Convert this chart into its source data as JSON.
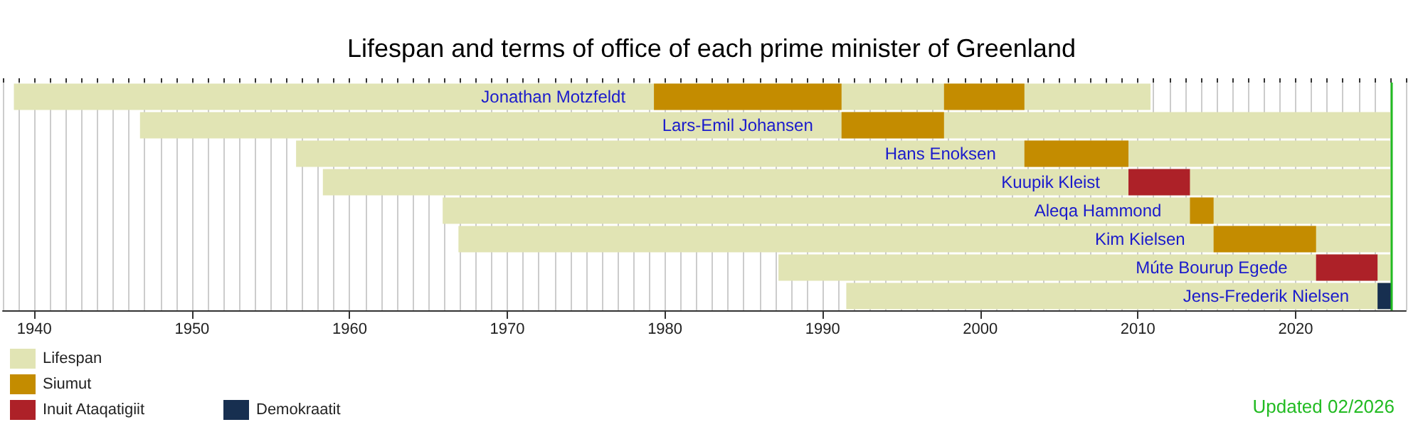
{
  "chart_data": {
    "type": "bar",
    "orientation": "horizontal",
    "title": "Lifespan and terms of office of each prime minister of Greenland",
    "categories": [
      "Jonathan Motzfeldt",
      "Lars-Emil Johansen",
      "Hans Enoksen",
      "Kuupik Kleist",
      "Aleqa Hammond",
      "Kim Kielsen",
      "Múte Bourup Egede",
      "Jens-Frederik Nielsen"
    ],
    "series": [
      {
        "name": "Lifespan",
        "color": "#e1e4b4",
        "base": [
          1938.7,
          1946.7,
          1956.6,
          1958.3,
          1965.9,
          1966.9,
          1987.2,
          1991.5
        ],
        "values": [
          72.1,
          79.4,
          69.4,
          67.8,
          60.2,
          59.2,
          38.9,
          34.6
        ]
      },
      {
        "name": "Siumut",
        "color": "#c48c00",
        "base": [
          1979.3,
          1991.2,
          2002.8,
          null,
          2013.3,
          2014.8,
          null,
          null
        ],
        "values": [
          11.9,
          6.5,
          6.6,
          null,
          1.5,
          6.5,
          null,
          null
        ]
      },
      {
        "color": "#c48c00",
        "base": [
          1997.7,
          null,
          null,
          null,
          null,
          null,
          null,
          null
        ],
        "values": [
          5.1,
          null,
          null,
          null,
          null,
          null,
          null,
          null
        ]
      },
      {
        "name": "Inuit Ataqatigiit",
        "color": "#ad2128",
        "base": [
          null,
          null,
          null,
          2009.4,
          null,
          null,
          2021.3,
          null
        ],
        "values": [
          null,
          null,
          null,
          3.9,
          null,
          null,
          3.9,
          null
        ]
      },
      {
        "name": "Demokraatit",
        "color": "#172f50",
        "base": [
          null,
          null,
          null,
          null,
          null,
          null,
          null,
          2025.2
        ],
        "values": [
          null,
          null,
          null,
          null,
          null,
          null,
          null,
          0.9
        ]
      }
    ],
    "xlim": [
      1938,
      2027
    ],
    "xticks": [
      1940,
      1950,
      1960,
      1970,
      1980,
      1990,
      2000,
      2010,
      2020
    ],
    "grid": "x",
    "tick_labels": "x",
    "legend": "bottom left",
    "ref_lines": [
      {
        "axis": "x",
        "value": 2026.1,
        "color": "#22bb22"
      }
    ],
    "annotations": [
      "Updated 02/2026"
    ]
  }
}
